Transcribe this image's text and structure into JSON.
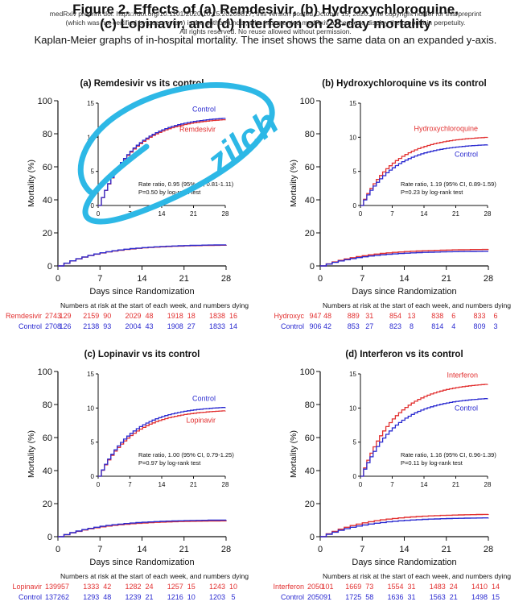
{
  "header": {
    "title_line1": "Figure 2. Effects of (a) Remdesivir, (b) Hydroxychloroquine,",
    "title_line2": "(c) Lopinavir, and (d) Interferon on 28-day mortality",
    "notice_line1": "medRxiv preprint doi: https://doi.org/10.1101/2020.10.15.20209817; this version posted October 15, 2020. The copyright holder for this preprint",
    "notice_line2": "(which was not certified by peer review) is the author/funder, who has granted medRxiv a license to display the preprint in perpetuity.",
    "notice_line3": "All rights reserved. No reuse allowed without permission.",
    "caption": "Kaplan-Meier graphs of in-hospital mortality. The inset shows the same data on an expanded y-axis."
  },
  "annotation": {
    "scribble_text": "zilch",
    "color": "#2db8e6"
  },
  "colors": {
    "treatment": "#e23030",
    "control": "#2a2ad0"
  },
  "common": {
    "ylabel": "Mortality (%)",
    "xlabel": "Days since Randomization",
    "risk_header": "Numbers at risk at the start of each week, and numbers dying"
  },
  "chart_data": [
    {
      "type": "line",
      "title": "(a) Remdesivir vs its control",
      "x": [
        0,
        7,
        14,
        21,
        28
      ],
      "xlim": [
        0,
        28
      ],
      "ylim": [
        0,
        100
      ],
      "yticks": [
        0,
        20,
        40,
        60,
        80,
        100
      ],
      "inset": {
        "ylim": [
          0,
          15
        ],
        "yticks": [
          0,
          5,
          10,
          15
        ],
        "xticks": [
          0,
          7,
          14,
          21,
          28
        ]
      },
      "series": [
        {
          "name": "Remdesivir",
          "values": [
            0,
            6.5,
            10.2,
            11.8,
            12.6
          ]
        },
        {
          "name": "Control",
          "values": [
            0,
            6.7,
            10.4,
            11.9,
            12.8
          ]
        }
      ],
      "inset_labels": [
        "Control",
        "Remdesivir"
      ],
      "stats": [
        "Rate ratio, 0.95 (95% CI, 0.81-1.11)",
        "P=0.50 by log-rank test"
      ],
      "risk_table": [
        {
          "label": "Remdesivir",
          "values": [
            "2743",
            "129",
            "2159",
            "90",
            "2029",
            "48",
            "1918",
            "18",
            "1838",
            "16"
          ]
        },
        {
          "label": "Control",
          "values": [
            "2708",
            "126",
            "2138",
            "93",
            "2004",
            "43",
            "1908",
            "27",
            "1833",
            "14"
          ]
        }
      ]
    },
    {
      "type": "line",
      "title": "(b) Hydroxychloroquine vs its control",
      "x": [
        0,
        7,
        14,
        21,
        28
      ],
      "xlim": [
        0,
        28
      ],
      "ylim": [
        0,
        100
      ],
      "yticks": [
        0,
        20,
        40,
        60,
        80,
        100
      ],
      "inset": {
        "ylim": [
          0,
          15
        ],
        "yticks": [
          0,
          5,
          10,
          15
        ],
        "xticks": [
          0,
          7,
          14,
          21,
          28
        ]
      },
      "series": [
        {
          "name": "Hydroxychloroquine",
          "values": [
            0,
            5.5,
            8.2,
            9.3,
            10.0
          ]
        },
        {
          "name": "Control",
          "values": [
            0,
            5.0,
            7.4,
            8.4,
            8.9
          ]
        }
      ],
      "inset_labels": [
        "Hydroxychloroquine",
        "Control"
      ],
      "stats": [
        "Rate ratio, 1.19 (95% CI, 0.89-1.59)",
        "P=0.23 by log-rank test"
      ],
      "risk_table": [
        {
          "label": "Hydroxyc",
          "values": [
            "947",
            "48",
            "889",
            "31",
            "854",
            "13",
            "838",
            "6",
            "833",
            "6"
          ]
        },
        {
          "label": "Control",
          "values": [
            "906",
            "42",
            "853",
            "27",
            "823",
            "8",
            "814",
            "4",
            "809",
            "3"
          ]
        }
      ]
    },
    {
      "type": "line",
      "title": "(c) Lopinavir vs its control",
      "x": [
        0,
        7,
        14,
        21,
        28
      ],
      "xlim": [
        0,
        28
      ],
      "ylim": [
        0,
        100
      ],
      "yticks": [
        0,
        20,
        40,
        60,
        80,
        100
      ],
      "inset": {
        "ylim": [
          0,
          15
        ],
        "yticks": [
          0,
          5,
          10,
          15
        ],
        "xticks": [
          0,
          7,
          14,
          21,
          28
        ]
      },
      "series": [
        {
          "name": "Lopinavir",
          "values": [
            0,
            4.4,
            7.8,
            9.0,
            9.6
          ]
        },
        {
          "name": "Control",
          "values": [
            0,
            4.8,
            8.2,
            9.6,
            10.1
          ]
        }
      ],
      "inset_labels": [
        "Control",
        "Lopinavir"
      ],
      "stats": [
        "Rate ratio, 1.00 (95% CI, 0.79-1.25)",
        "P=0.97 by log-rank test"
      ],
      "risk_table": [
        {
          "label": "Lopinavir",
          "values": [
            "1399",
            "57",
            "1333",
            "42",
            "1282",
            "24",
            "1257",
            "15",
            "1243",
            "10"
          ]
        },
        {
          "label": "Control",
          "values": [
            "1372",
            "62",
            "1293",
            "48",
            "1239",
            "21",
            "1216",
            "10",
            "1203",
            "5"
          ]
        }
      ]
    },
    {
      "type": "line",
      "title": "(d) Interferon vs its control",
      "x": [
        0,
        7,
        14,
        21,
        28
      ],
      "xlim": [
        0,
        28
      ],
      "ylim": [
        0,
        100
      ],
      "yticks": [
        0,
        20,
        40,
        60,
        80,
        100
      ],
      "inset": {
        "ylim": [
          0,
          15
        ],
        "yticks": [
          0,
          5,
          10,
          15
        ],
        "xticks": [
          0,
          7,
          14,
          21,
          28
        ]
      },
      "series": [
        {
          "name": "Interferon",
          "values": [
            0,
            6.2,
            10.4,
            12.3,
            13.5
          ]
        },
        {
          "name": "Control",
          "values": [
            0,
            5.4,
            9.0,
            10.6,
            11.4
          ]
        }
      ],
      "inset_labels": [
        "Interferon",
        "Control"
      ],
      "stats": [
        "Rate ratio, 1.16 (95% CI, 0.96-1.39)",
        "P=0.11 by log-rank test"
      ],
      "risk_table": [
        {
          "label": "Interferon",
          "values": [
            "2050",
            "101",
            "1669",
            "73",
            "1554",
            "31",
            "1483",
            "24",
            "1410",
            "14"
          ]
        },
        {
          "label": "Control",
          "values": [
            "2050",
            "91",
            "1725",
            "58",
            "1636",
            "31",
            "1563",
            "21",
            "1498",
            "15"
          ]
        }
      ]
    }
  ]
}
